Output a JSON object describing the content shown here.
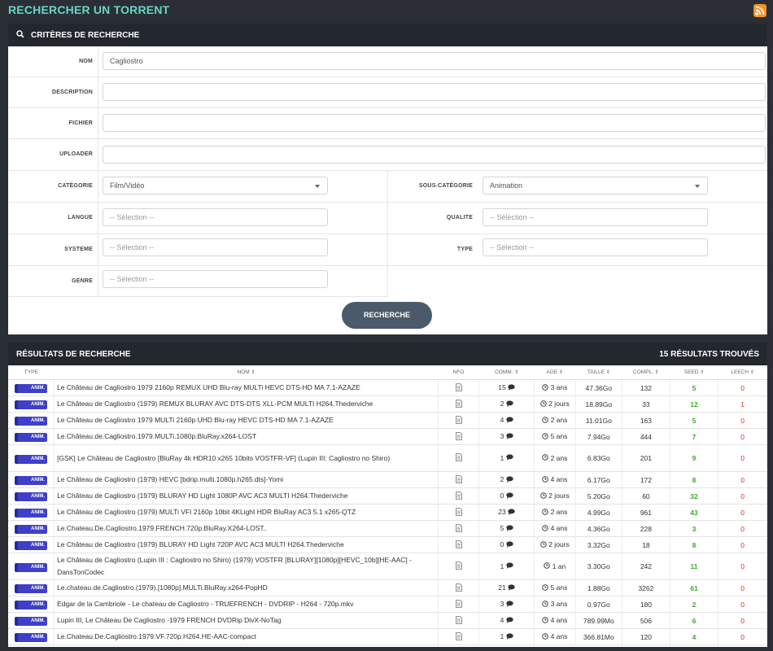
{
  "page_title": "RECHERCHER UN TORRENT",
  "search_panel": {
    "title": "CRITÈRES DE RECHERCHE",
    "fields": {
      "nom_label": "NOM",
      "nom_value": "Cagliostro",
      "description_label": "DESCRIPTION",
      "fichier_label": "FICHIER",
      "uploader_label": "UPLOADER",
      "categorie_label": "CATÉGORIE",
      "categorie_value": "Film/Vidéo",
      "sous_categorie_label": "SOUS-CATÉGORIE",
      "sous_categorie_value": "Animation",
      "langue_label": "LANGUE",
      "qualite_label": "QUALITE",
      "systeme_label": "SYSTEME",
      "type_label": "TYPE",
      "genre_label": "GENRE",
      "placeholder": "-- Sélection --"
    },
    "button": "RECHERCHE"
  },
  "results_panel": {
    "title": "RÉSULTATS DE RECHERCHE",
    "count": "15 RÉSULTATS TROUVÉS",
    "columns": [
      "TYPE",
      "NOM",
      "NFO",
      "COMM.",
      "AGE",
      "TAILLE",
      "COMPL.",
      "SEED",
      "LEECH"
    ],
    "rows": [
      {
        "type": "ANIM.",
        "name": "Le Château de Cagliostro 1979 2160p REMUX UHD Blu-ray MULTi HEVC DTS-HD MA 7.1-AZAZE",
        "comm": "15",
        "age": "3 ans",
        "size": "47.36Go",
        "compl": "132",
        "seed": "5",
        "leech": "0"
      },
      {
        "type": "ANIM.",
        "name": "Le Château de Cagliostro (1979) REMUX BLURAY AVC DTS-DTS XLL-PCM MULTI H264.Thederviche",
        "comm": "2",
        "age": "2 jours",
        "size": "18.89Go",
        "compl": "33",
        "seed": "12",
        "leech": "1"
      },
      {
        "type": "ANIM.",
        "name": "Le Château de Cagliostro 1979 MULTi 2160p UHD Blu-ray HEVC DTS-HD MA 7.1-AZAZE",
        "comm": "4",
        "age": "2 ans",
        "size": "11.01Go",
        "compl": "163",
        "seed": "5",
        "leech": "0"
      },
      {
        "type": "ANIM.",
        "name": "Le.Château.de.Cagliostro.1979.MULTi.1080p.BluRay.x264-LOST",
        "comm": "3",
        "age": "5 ans",
        "size": "7.94Go",
        "compl": "444",
        "seed": "7",
        "leech": "0"
      },
      {
        "type": "ANIM.",
        "name": "[GSK] Le Château de Cagliostro [BluRay 4k HDR10 x265 10bits VOSTFR-VF] (Lupin III: Cagliostro no Shiro)",
        "comm": "1",
        "age": "2 ans",
        "size": "6.83Go",
        "compl": "201",
        "seed": "9",
        "leech": "0"
      },
      {
        "type": "ANIM.",
        "name": "Le Château de Cagliostro (1979) HEVC [bdrip.multi.1080p.h265.dts]-Yomi",
        "comm": "2",
        "age": "4 ans",
        "size": "6.17Go",
        "compl": "172",
        "seed": "8",
        "leech": "0"
      },
      {
        "type": "ANIM.",
        "name": "Le Château de Cagliostro (1979) BLURAY HD Light 1080P AVC AC3 MULTI H264.Thederviche",
        "comm": "0",
        "age": "2 jours",
        "size": "5.20Go",
        "compl": "60",
        "seed": "32",
        "leech": "0"
      },
      {
        "type": "ANIM.",
        "name": "Le Château de Cagliostro (1979) MULTi VFI 2160p 10bit 4KLight HDR BluRay AC3 5.1 x265-QTZ",
        "comm": "23",
        "age": "2 ans",
        "size": "4.99Go",
        "compl": "961",
        "seed": "43",
        "leech": "0"
      },
      {
        "type": "ANIM.",
        "name": "Le.Chateau.De.Cagliostro.1979.FRENCH.720p.BluRay.X264-LOST..",
        "comm": "5",
        "age": "4 ans",
        "size": "4.36Go",
        "compl": "228",
        "seed": "3",
        "leech": "0"
      },
      {
        "type": "ANIM.",
        "name": "Le Château de Cagliostro (1979) BLURAY HD Light 720P AVC AC3 MULTI H264.Thederviche",
        "comm": "0",
        "age": "2 jours",
        "size": "3.32Go",
        "compl": "18",
        "seed": "8",
        "leech": "0"
      },
      {
        "type": "ANIM.",
        "name": "Le Château de Cagliostro (Lupin III : Cagliostro no Shiro) (1979) VOSTFR [BLURAY][1080p][HEVC_10b][HE-AAC] - DansTonCodec",
        "comm": "1",
        "age": "1 an",
        "size": "3.30Go",
        "compl": "242",
        "seed": "11",
        "leech": "0"
      },
      {
        "type": "ANIM.",
        "name": "Le.chateau.de.Cagliostro.(1979).[1080p].MULTi.BluRay.x264-PopHD",
        "comm": "21",
        "age": "5 ans",
        "size": "1.88Go",
        "compl": "3262",
        "seed": "61",
        "leech": "0"
      },
      {
        "type": "ANIM.",
        "name": "Edgar de la Cambriole - Le chateau de Cagliostro - TRUEFRENCH - DVDRIP - H264 - 720p.mkv",
        "comm": "3",
        "age": "3 ans",
        "size": "0.97Go",
        "compl": "180",
        "seed": "2",
        "leech": "0"
      },
      {
        "type": "ANIM.",
        "name": "Lupin III, Le Château De Cagliostro -1979 FRENCH DVDRip DivX-NoTag",
        "comm": "4",
        "age": "4 ans",
        "size": "789.99Mo",
        "compl": "506",
        "seed": "6",
        "leech": "0"
      },
      {
        "type": "ANIM.",
        "name": "Le.Chateau.De.Cagliostro.1979.VF.720p.H264.HE-AAC-compact",
        "comm": "1",
        "age": "4 ans",
        "size": "366.81Mo",
        "compl": "120",
        "seed": "4",
        "leech": "0"
      }
    ]
  },
  "colors": {
    "accent": "#66d6c6",
    "dark_header": "#23272e",
    "badge": "#3f3fc9",
    "seed": "#3fa82f",
    "leech": "#e02a2a",
    "rss": "#f59227"
  }
}
